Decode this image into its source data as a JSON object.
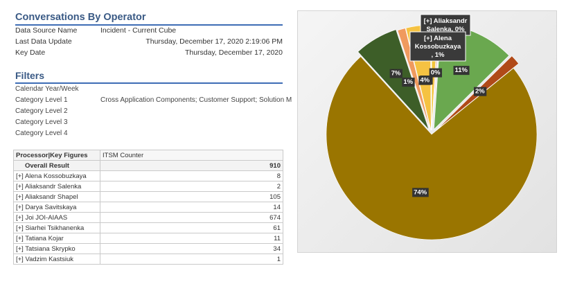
{
  "report": {
    "title": "Conversations By Operator",
    "data_source_label": "Data Source Name",
    "data_source_value": "Incident - Current Cube",
    "last_update_label": "Last Data Update",
    "last_update_value": "Thursday, December 17, 2020 2:19:06 PM",
    "key_date_label": "Key Date",
    "key_date_value": "Thursday, December 17, 2020"
  },
  "filters": {
    "title": "Filters",
    "rows": [
      {
        "label": "Calendar Year/Week",
        "value": ""
      },
      {
        "label": "Category Level 1",
        "value": "Cross Application Components; Customer Support; Solution M"
      },
      {
        "label": "Category Level 2",
        "value": ""
      },
      {
        "label": "Category Level 3",
        "value": ""
      },
      {
        "label": "Category Level 4",
        "value": ""
      }
    ]
  },
  "table": {
    "headers": [
      "Processor|Key Figures",
      "ITSM Counter"
    ],
    "total_label": "Overall Result",
    "total_value": "910",
    "rows": [
      {
        "name": "[+] Alena Kossobuzkaya",
        "value": "8"
      },
      {
        "name": "[+] Aliaksandr Salenka",
        "value": "2"
      },
      {
        "name": "[+] Aliaksandr Shapel",
        "value": "105"
      },
      {
        "name": "[+] Darya Savitskaya",
        "value": "14"
      },
      {
        "name": "[+] Joi JOI-AIAAS",
        "value": "674"
      },
      {
        "name": "[+] Siarhei Tsikhanenka",
        "value": "61"
      },
      {
        "name": "[+] Tatiana Kojar",
        "value": "11"
      },
      {
        "name": "[+] Tatsiana Skrypko",
        "value": "34"
      },
      {
        "name": "[+] Vadzim Kastsiuk",
        "value": "1"
      }
    ]
  },
  "chart_data": {
    "type": "pie",
    "exploded": true,
    "slices": [
      {
        "name": "[+] Alena Kossobuzkaya",
        "value": 8,
        "label": "1%",
        "color": "#f2c43a"
      },
      {
        "name": "[+] Aliaksandr Salenka",
        "value": 2,
        "label": "0%",
        "color": "#e9a08a"
      },
      {
        "name": "[+] Aliaksandr Shapel",
        "value": 105,
        "label": "11%",
        "color": "#6aa84f"
      },
      {
        "name": "[+] Darya Savitskaya",
        "value": 14,
        "label": "2%",
        "color": "#b04a18"
      },
      {
        "name": "[+] Joi JOI-AIAAS",
        "value": 674,
        "label": "74%",
        "color": "#9a7500"
      },
      {
        "name": "[+] Siarhei Tsikhanenka",
        "value": 61,
        "label": "7%",
        "color": "#3d5e28"
      },
      {
        "name": "[+] Tatiana Kojar",
        "value": 11,
        "label": "1%",
        "color": "#f09a5e"
      },
      {
        "name": "[+] Tatsiana Skrypko",
        "value": 34,
        "label": "4%",
        "color": "#f5c242"
      },
      {
        "name": "[+] Vadzim Kastsiuk",
        "value": 1,
        "label": "0%",
        "color": "#d8d8d8"
      }
    ],
    "callouts": [
      {
        "text_lines": [
          "[+] Aliaksandr",
          "Salenka, 0%"
        ]
      },
      {
        "text_lines": [
          "[+] Alena",
          "Kossobuzkaya",
          ", 1%"
        ]
      }
    ]
  }
}
